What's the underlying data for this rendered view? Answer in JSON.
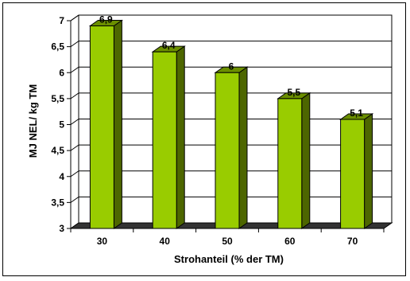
{
  "chart_data": {
    "type": "bar",
    "title": "",
    "xlabel": "Strohanteil (% der TM)",
    "ylabel": "MJ NEL/ kg TM",
    "categories": [
      "30",
      "40",
      "50",
      "60",
      "70"
    ],
    "values": [
      6.9,
      6.4,
      6,
      5.5,
      5.1
    ],
    "value_labels": [
      "6,9",
      "6,4",
      "6",
      "5,5",
      "5,1"
    ],
    "ylim": [
      3,
      7
    ],
    "yticks": [
      3,
      3.5,
      4,
      4.5,
      5,
      5.5,
      6,
      6.5,
      7
    ],
    "ytick_labels": [
      "3",
      "3,5",
      "4",
      "4,5",
      "5",
      "5,5",
      "6",
      "6,5",
      "7"
    ],
    "grid": true,
    "legend": "none",
    "bar_color": "#99cc00",
    "bar_side_color": "#4d6600",
    "bar_top_color": "#6b8f00"
  }
}
